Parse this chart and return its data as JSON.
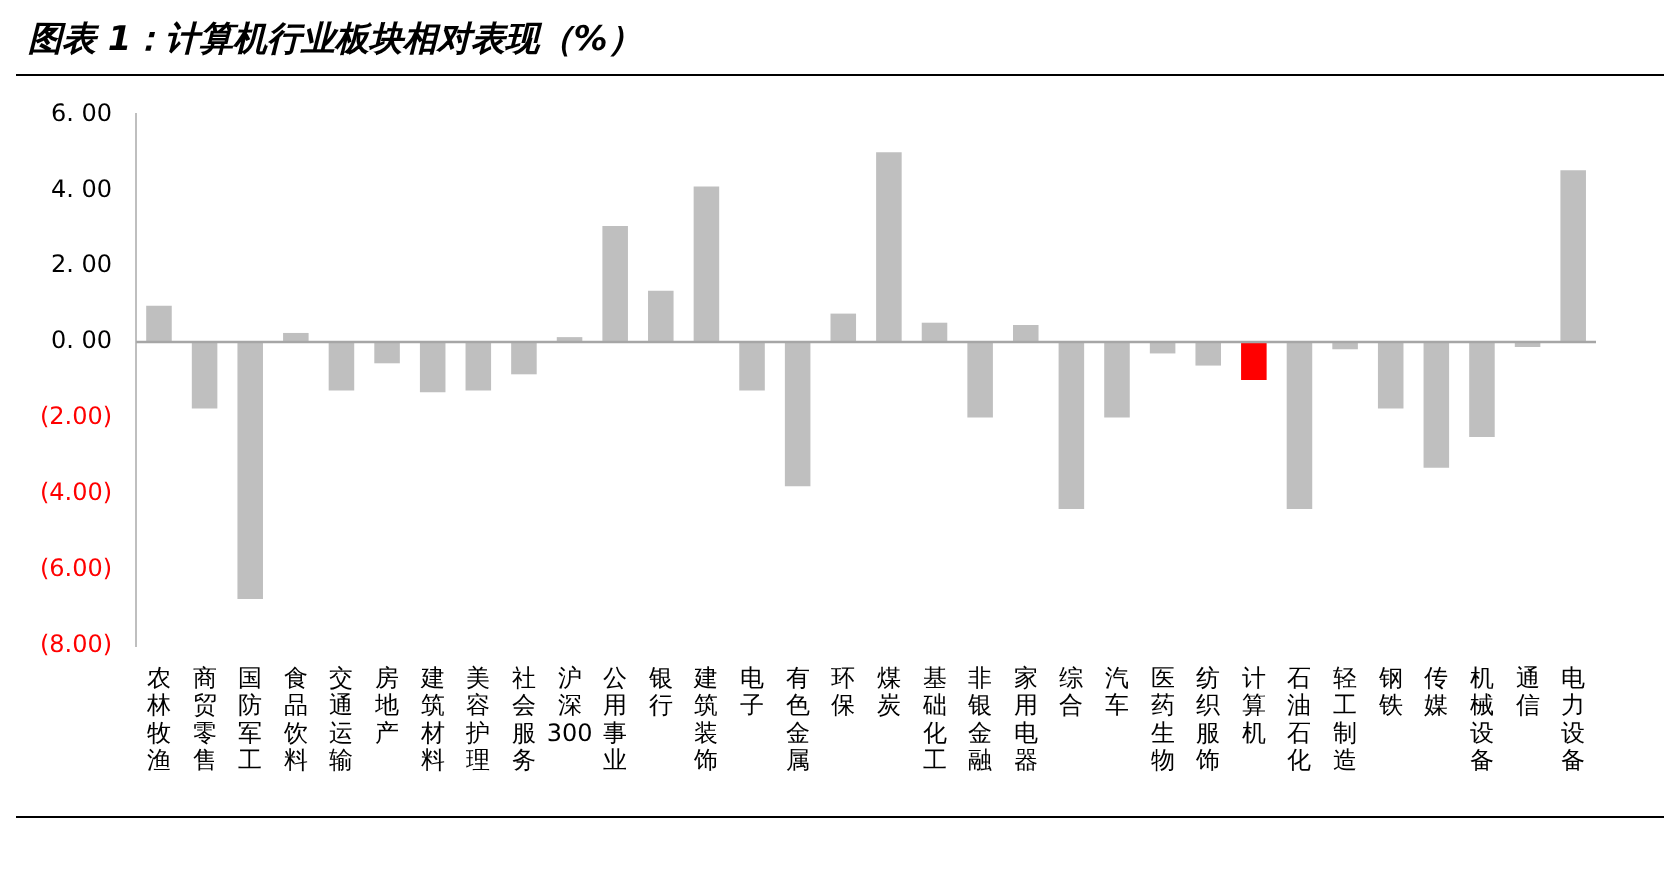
{
  "chart_data": {
    "type": "bar",
    "title": "图表 1：计算机行业板块相对表现（%）",
    "categories": [
      "农林牧渔",
      "商贸零售",
      "国防军工",
      "食品饮料",
      "交通运输",
      "房地产",
      "建筑材料",
      "美容护理",
      "社会服务",
      "沪深300",
      "公用事业",
      "银行",
      "建筑装饰",
      "电子",
      "有色金属",
      "环保",
      "煤炭",
      "基础化工",
      "非银金融",
      "家用电器",
      "综合",
      "汽车",
      "医药生物",
      "纺织服饰",
      "计算机",
      "石油石化",
      "轻工制造",
      "钢铁",
      "传媒",
      "机械设备",
      "通信",
      "电力设备"
    ],
    "values": [
      0.96,
      -1.75,
      -6.77,
      0.24,
      -1.28,
      -0.56,
      -1.32,
      -1.28,
      -0.85,
      0.13,
      3.06,
      1.35,
      4.1,
      -1.28,
      -3.8,
      0.75,
      5.0,
      0.51,
      -1.99,
      0.45,
      -4.4,
      -1.99,
      -0.3,
      -0.62,
      -1.0,
      -4.4,
      -0.19,
      -1.75,
      -3.31,
      -2.5,
      -0.13,
      4.53
    ],
    "colors": [
      "#bfbfbf",
      "#bfbfbf",
      "#bfbfbf",
      "#bfbfbf",
      "#bfbfbf",
      "#bfbfbf",
      "#bfbfbf",
      "#bfbfbf",
      "#bfbfbf",
      "#bfbfbf",
      "#bfbfbf",
      "#bfbfbf",
      "#bfbfbf",
      "#bfbfbf",
      "#bfbfbf",
      "#bfbfbf",
      "#bfbfbf",
      "#bfbfbf",
      "#bfbfbf",
      "#bfbfbf",
      "#bfbfbf",
      "#bfbfbf",
      "#bfbfbf",
      "#bfbfbf",
      "#ff0000",
      "#bfbfbf",
      "#bfbfbf",
      "#bfbfbf",
      "#bfbfbf",
      "#bfbfbf",
      "#bfbfbf",
      "#bfbfbf"
    ],
    "ylim": [
      -8,
      6
    ],
    "yticks": [
      {
        "value": 6,
        "label": "6. 00"
      },
      {
        "value": 4,
        "label": "4. 00"
      },
      {
        "value": 2,
        "label": "2. 00"
      },
      {
        "value": 0,
        "label": "0. 00"
      },
      {
        "value": -2,
        "label": "(2.00)"
      },
      {
        "value": -4,
        "label": "(4.00)"
      },
      {
        "value": -6,
        "label": "(6.00)"
      },
      {
        "value": -8,
        "label": "(8.00)"
      }
    ],
    "ref_lines": [
      {
        "axis": "y",
        "value": 0,
        "color": "#a6a6a6"
      }
    ],
    "legend": false
  }
}
